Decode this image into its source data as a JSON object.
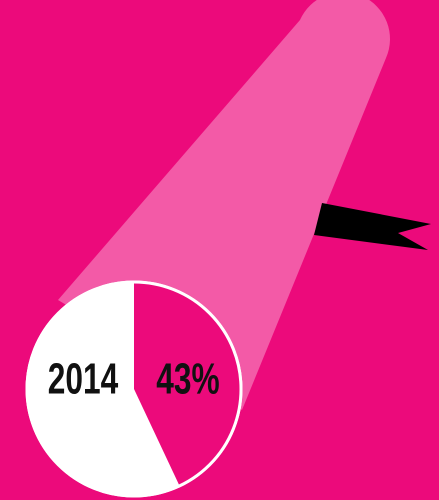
{
  "chart_data": {
    "type": "pie",
    "label": "2014",
    "values": [
      43
    ],
    "value_labels": [
      "43%"
    ],
    "color": "#ec0a7b",
    "rest_color": "#ffffff"
  }
}
